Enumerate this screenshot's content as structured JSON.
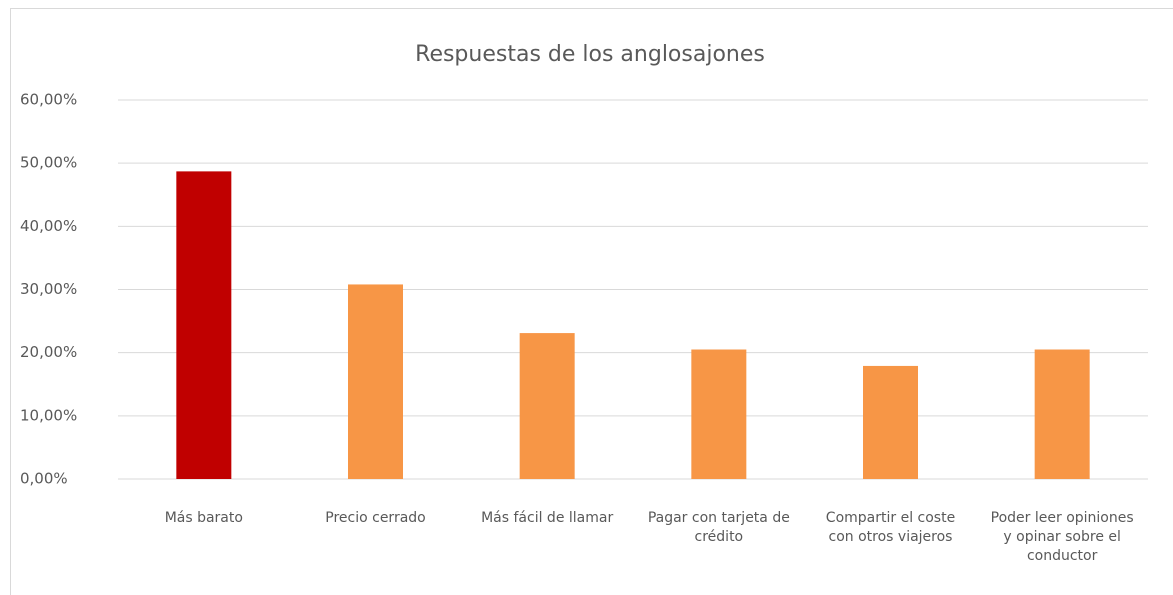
{
  "chart_data": {
    "type": "bar",
    "title": "Respuestas de los anglosajones",
    "categories": [
      "Más barato",
      "Precio cerrado",
      "Más fácil de llamar",
      "Pagar con tarjeta de crédito",
      "Compartir el coste con otros viajeros",
      "Poder leer opiniones y opinar sobre el conductor"
    ],
    "values": [
      48.7,
      30.8,
      23.1,
      20.5,
      17.9,
      20.5
    ],
    "colors": [
      "#c00000",
      "#f79646",
      "#f79646",
      "#f79646",
      "#f79646",
      "#f79646"
    ],
    "ylim": [
      0,
      60
    ],
    "yticks": [
      {
        "value": 0,
        "label": "0,00%"
      },
      {
        "value": 10,
        "label": "10,00%"
      },
      {
        "value": 20,
        "label": "20,00%"
      },
      {
        "value": 30,
        "label": "30,00%"
      },
      {
        "value": 40,
        "label": "40,00%"
      },
      {
        "value": 50,
        "label": "50,00%"
      },
      {
        "value": 60,
        "label": "60,00%"
      }
    ],
    "grid": true
  }
}
